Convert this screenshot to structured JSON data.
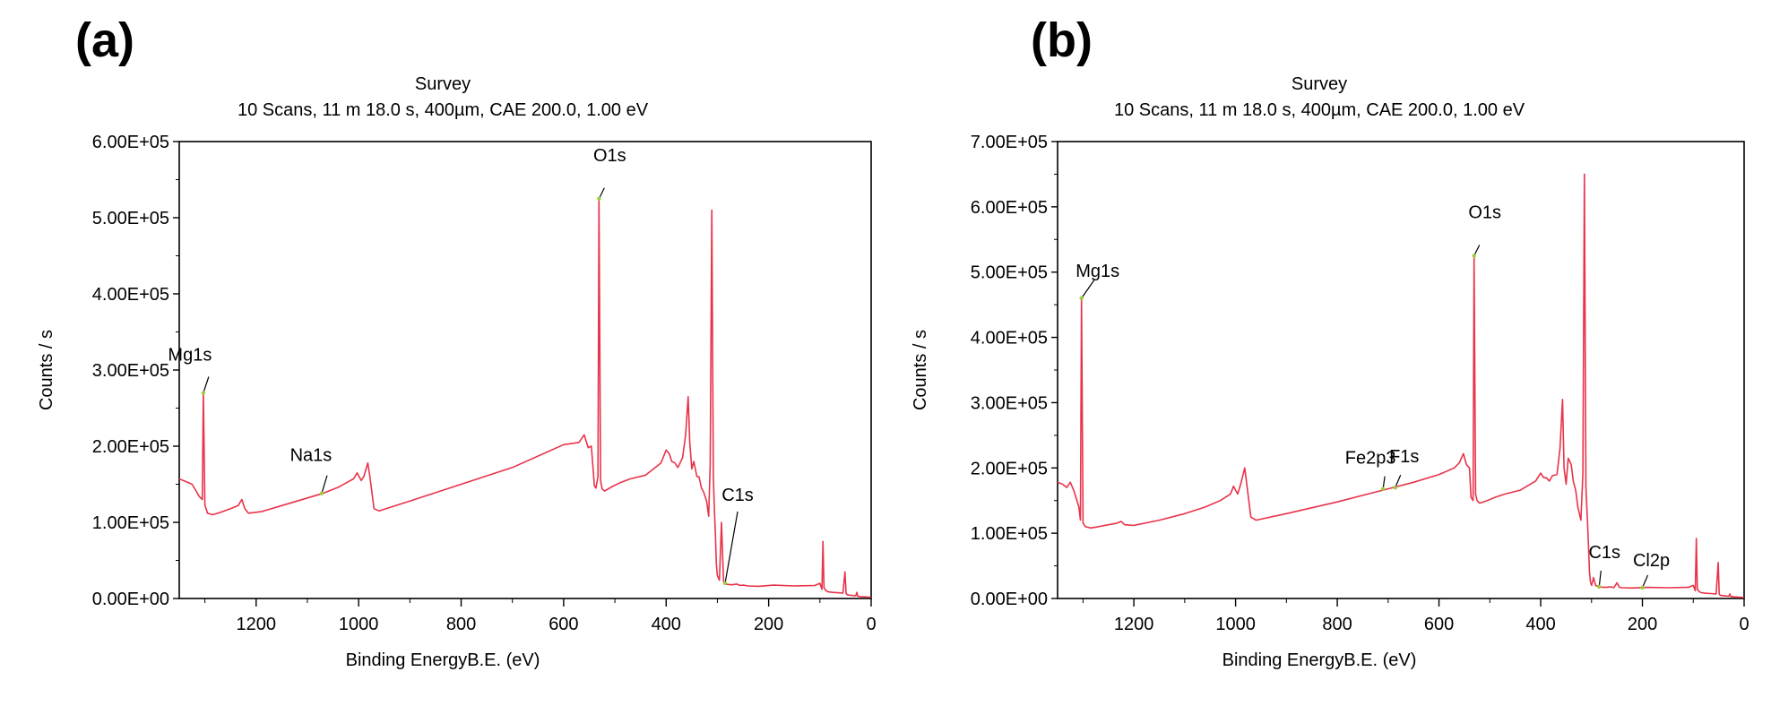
{
  "panels": [
    {
      "label": "(a)",
      "title": "Survey",
      "subtitle": "10 Scans,  11 m 18.0 s,  400µm,  CAE 200.0,  1.00 eV",
      "xlabel": "Binding EnergyB.E. (eV)",
      "ylabel": "Counts / s"
    },
    {
      "label": "(b)",
      "title": "Survey",
      "subtitle": "10 Scans,  11 m 18.0 s,  400µm,  CAE 200.0,  1.00 eV",
      "xlabel": "Binding EnergyB.E. (eV)",
      "ylabel": "Counts / s"
    }
  ],
  "chart_data": [
    {
      "type": "line",
      "title": "Survey",
      "subtitle": "10 Scans,  11 m 18.0 s,  400µm,  CAE 200.0,  1.00 eV",
      "xlabel": "Binding EnergyB.E. (eV)",
      "ylabel": "Counts / s",
      "xlim": [
        1350,
        0
      ],
      "ylim": [
        0,
        600000
      ],
      "x_ticks": [
        1200,
        1000,
        800,
        600,
        400,
        200,
        0
      ],
      "x_tick_labels": [
        "1200",
        "1000",
        "800",
        "600",
        "400",
        "200",
        "0"
      ],
      "y_ticks": [
        0,
        100000,
        200000,
        300000,
        400000,
        500000,
        600000
      ],
      "y_tick_labels": [
        "0.00E+00",
        "1.00E+05",
        "2.00E+05",
        "3.00E+05",
        "4.00E+05",
        "5.00E+05",
        "6.00E+05"
      ],
      "grid": false,
      "line_color": "#e8334a",
      "series": [
        {
          "x": [
            1350,
            1335,
            1325,
            1316,
            1312,
            1308,
            1305,
            1303,
            1300,
            1295,
            1285,
            1270,
            1250,
            1235,
            1228,
            1222,
            1215,
            1190,
            1150,
            1100,
            1070,
            1040,
            1010,
            1003,
            995,
            990,
            982,
            978,
            970,
            960,
            900,
            800,
            700,
            600,
            570,
            560,
            552,
            546,
            540,
            537,
            533,
            531,
            528,
            525,
            520,
            505,
            490,
            470,
            440,
            410,
            400,
            394,
            389,
            383,
            377,
            368,
            362,
            357,
            354,
            350,
            346,
            340,
            336,
            331,
            327,
            321,
            317,
            314,
            311,
            308,
            306,
            304,
            302,
            300,
            296,
            292,
            288,
            286,
            284,
            280,
            272,
            262,
            256,
            250,
            240,
            220,
            190,
            150,
            110,
            100,
            96,
            94,
            92,
            89,
            85,
            75,
            65,
            55,
            51,
            49,
            47,
            44,
            38,
            30,
            28,
            26,
            20,
            10,
            0
          ],
          "y": [
            157000,
            153000,
            150000,
            140000,
            135000,
            132000,
            130000,
            270000,
            123000,
            112000,
            110000,
            113000,
            118000,
            122000,
            130000,
            118000,
            112000,
            114000,
            122000,
            132000,
            138000,
            146000,
            157000,
            165000,
            155000,
            160000,
            178000,
            160000,
            118000,
            115000,
            128000,
            150000,
            172000,
            202000,
            205000,
            215000,
            198000,
            200000,
            148000,
            145000,
            160000,
            525000,
            155000,
            144000,
            141000,
            147000,
            152000,
            157000,
            162000,
            178000,
            195000,
            190000,
            180000,
            178000,
            172000,
            185000,
            215000,
            265000,
            205000,
            170000,
            180000,
            160000,
            160000,
            145000,
            140000,
            128000,
            108000,
            175000,
            510000,
            160000,
            120000,
            85000,
            45000,
            30000,
            24000,
            100000,
            22000,
            20000,
            19000,
            18500,
            18000,
            19000,
            17000,
            17500,
            16500,
            16000,
            17500,
            16500,
            17000,
            20000,
            12000,
            75000,
            14000,
            11000,
            9000,
            8000,
            7500,
            7000,
            35000,
            7000,
            5000,
            4500,
            4000,
            3500,
            8000,
            3000,
            2500,
            2000,
            1500
          ]
        }
      ],
      "annotations": [
        {
          "text": "O1s",
          "x": 531,
          "y": 525000
        },
        {
          "text": "Mg1s",
          "x": 1303,
          "y": 270000
        },
        {
          "text": "Na1s",
          "x": 1072,
          "y": 138000
        },
        {
          "text": "C1s",
          "x": 285,
          "y": 20000
        }
      ]
    },
    {
      "type": "line",
      "title": "Survey",
      "subtitle": "10 Scans,  11 m 18.0 s,  400µm,  CAE 200.0,  1.00 eV",
      "xlabel": "Binding EnergyB.E. (eV)",
      "ylabel": "Counts / s",
      "xlim": [
        1350,
        0
      ],
      "ylim": [
        0,
        700000
      ],
      "x_ticks": [
        1200,
        1000,
        800,
        600,
        400,
        200,
        0
      ],
      "x_tick_labels": [
        "1200",
        "1000",
        "800",
        "600",
        "400",
        "200",
        "0"
      ],
      "y_ticks": [
        0,
        100000,
        200000,
        300000,
        400000,
        500000,
        600000,
        700000
      ],
      "y_tick_labels": [
        "0.00E+00",
        "1.00E+05",
        "2.00E+05",
        "3.00E+05",
        "4.00E+05",
        "5.00E+05",
        "6.00E+05",
        "7.00E+05"
      ],
      "grid": false,
      "line_color": "#e8334a",
      "series": [
        {
          "x": [
            1350,
            1340,
            1332,
            1325,
            1318,
            1312,
            1308,
            1305,
            1303,
            1300,
            1295,
            1285,
            1270,
            1250,
            1235,
            1225,
            1218,
            1200,
            1150,
            1100,
            1060,
            1030,
            1010,
            1004,
            996,
            990,
            982,
            978,
            970,
            960,
            900,
            800,
            700,
            650,
            600,
            570,
            560,
            552,
            546,
            540,
            537,
            533,
            531,
            528,
            525,
            520,
            505,
            490,
            470,
            440,
            410,
            400,
            394,
            389,
            383,
            377,
            368,
            362,
            357,
            354,
            350,
            346,
            340,
            336,
            331,
            327,
            321,
            317,
            314,
            311,
            308,
            306,
            304,
            302,
            300,
            296,
            292,
            288,
            285,
            280,
            272,
            262,
            256,
            250,
            245,
            240,
            220,
            190,
            150,
            110,
            100,
            96,
            94,
            92,
            89,
            85,
            75,
            65,
            55,
            51,
            49,
            47,
            44,
            38,
            30,
            28,
            26,
            20,
            10,
            0
          ],
          "y": [
            178000,
            175000,
            170000,
            178000,
            165000,
            150000,
            140000,
            120000,
            460000,
            115000,
            110000,
            108000,
            110000,
            113000,
            115000,
            118000,
            113000,
            112000,
            120000,
            130000,
            140000,
            150000,
            160000,
            172000,
            160000,
            175000,
            200000,
            175000,
            125000,
            120000,
            130000,
            148000,
            168000,
            178000,
            190000,
            200000,
            208000,
            222000,
            205000,
            200000,
            155000,
            150000,
            525000,
            160000,
            150000,
            146000,
            150000,
            155000,
            160000,
            166000,
            180000,
            192000,
            185000,
            185000,
            180000,
            188000,
            190000,
            230000,
            305000,
            200000,
            175000,
            215000,
            205000,
            180000,
            165000,
            140000,
            120000,
            190000,
            650000,
            170000,
            120000,
            80000,
            40000,
            25000,
            20000,
            32000,
            20000,
            18500,
            18000,
            17500,
            17000,
            18000,
            16500,
            24000,
            17000,
            16500,
            16000,
            17000,
            16500,
            17000,
            20000,
            12000,
            92000,
            14000,
            11000,
            9000,
            8000,
            7500,
            7000,
            55000,
            7000,
            5000,
            4500,
            4000,
            3500,
            7000,
            3000,
            2500,
            2000,
            1500
          ]
        }
      ],
      "annotations": [
        {
          "text": "Mg1s",
          "x": 1303,
          "y": 460000
        },
        {
          "text": "O1s",
          "x": 531,
          "y": 525000
        },
        {
          "text": "Fe2p3",
          "x": 710,
          "y": 168000
        },
        {
          "text": "F1s",
          "x": 686,
          "y": 170000
        },
        {
          "text": "C1s",
          "x": 285,
          "y": 18000
        },
        {
          "text": "Cl2p",
          "x": 200,
          "y": 16500
        }
      ]
    }
  ]
}
